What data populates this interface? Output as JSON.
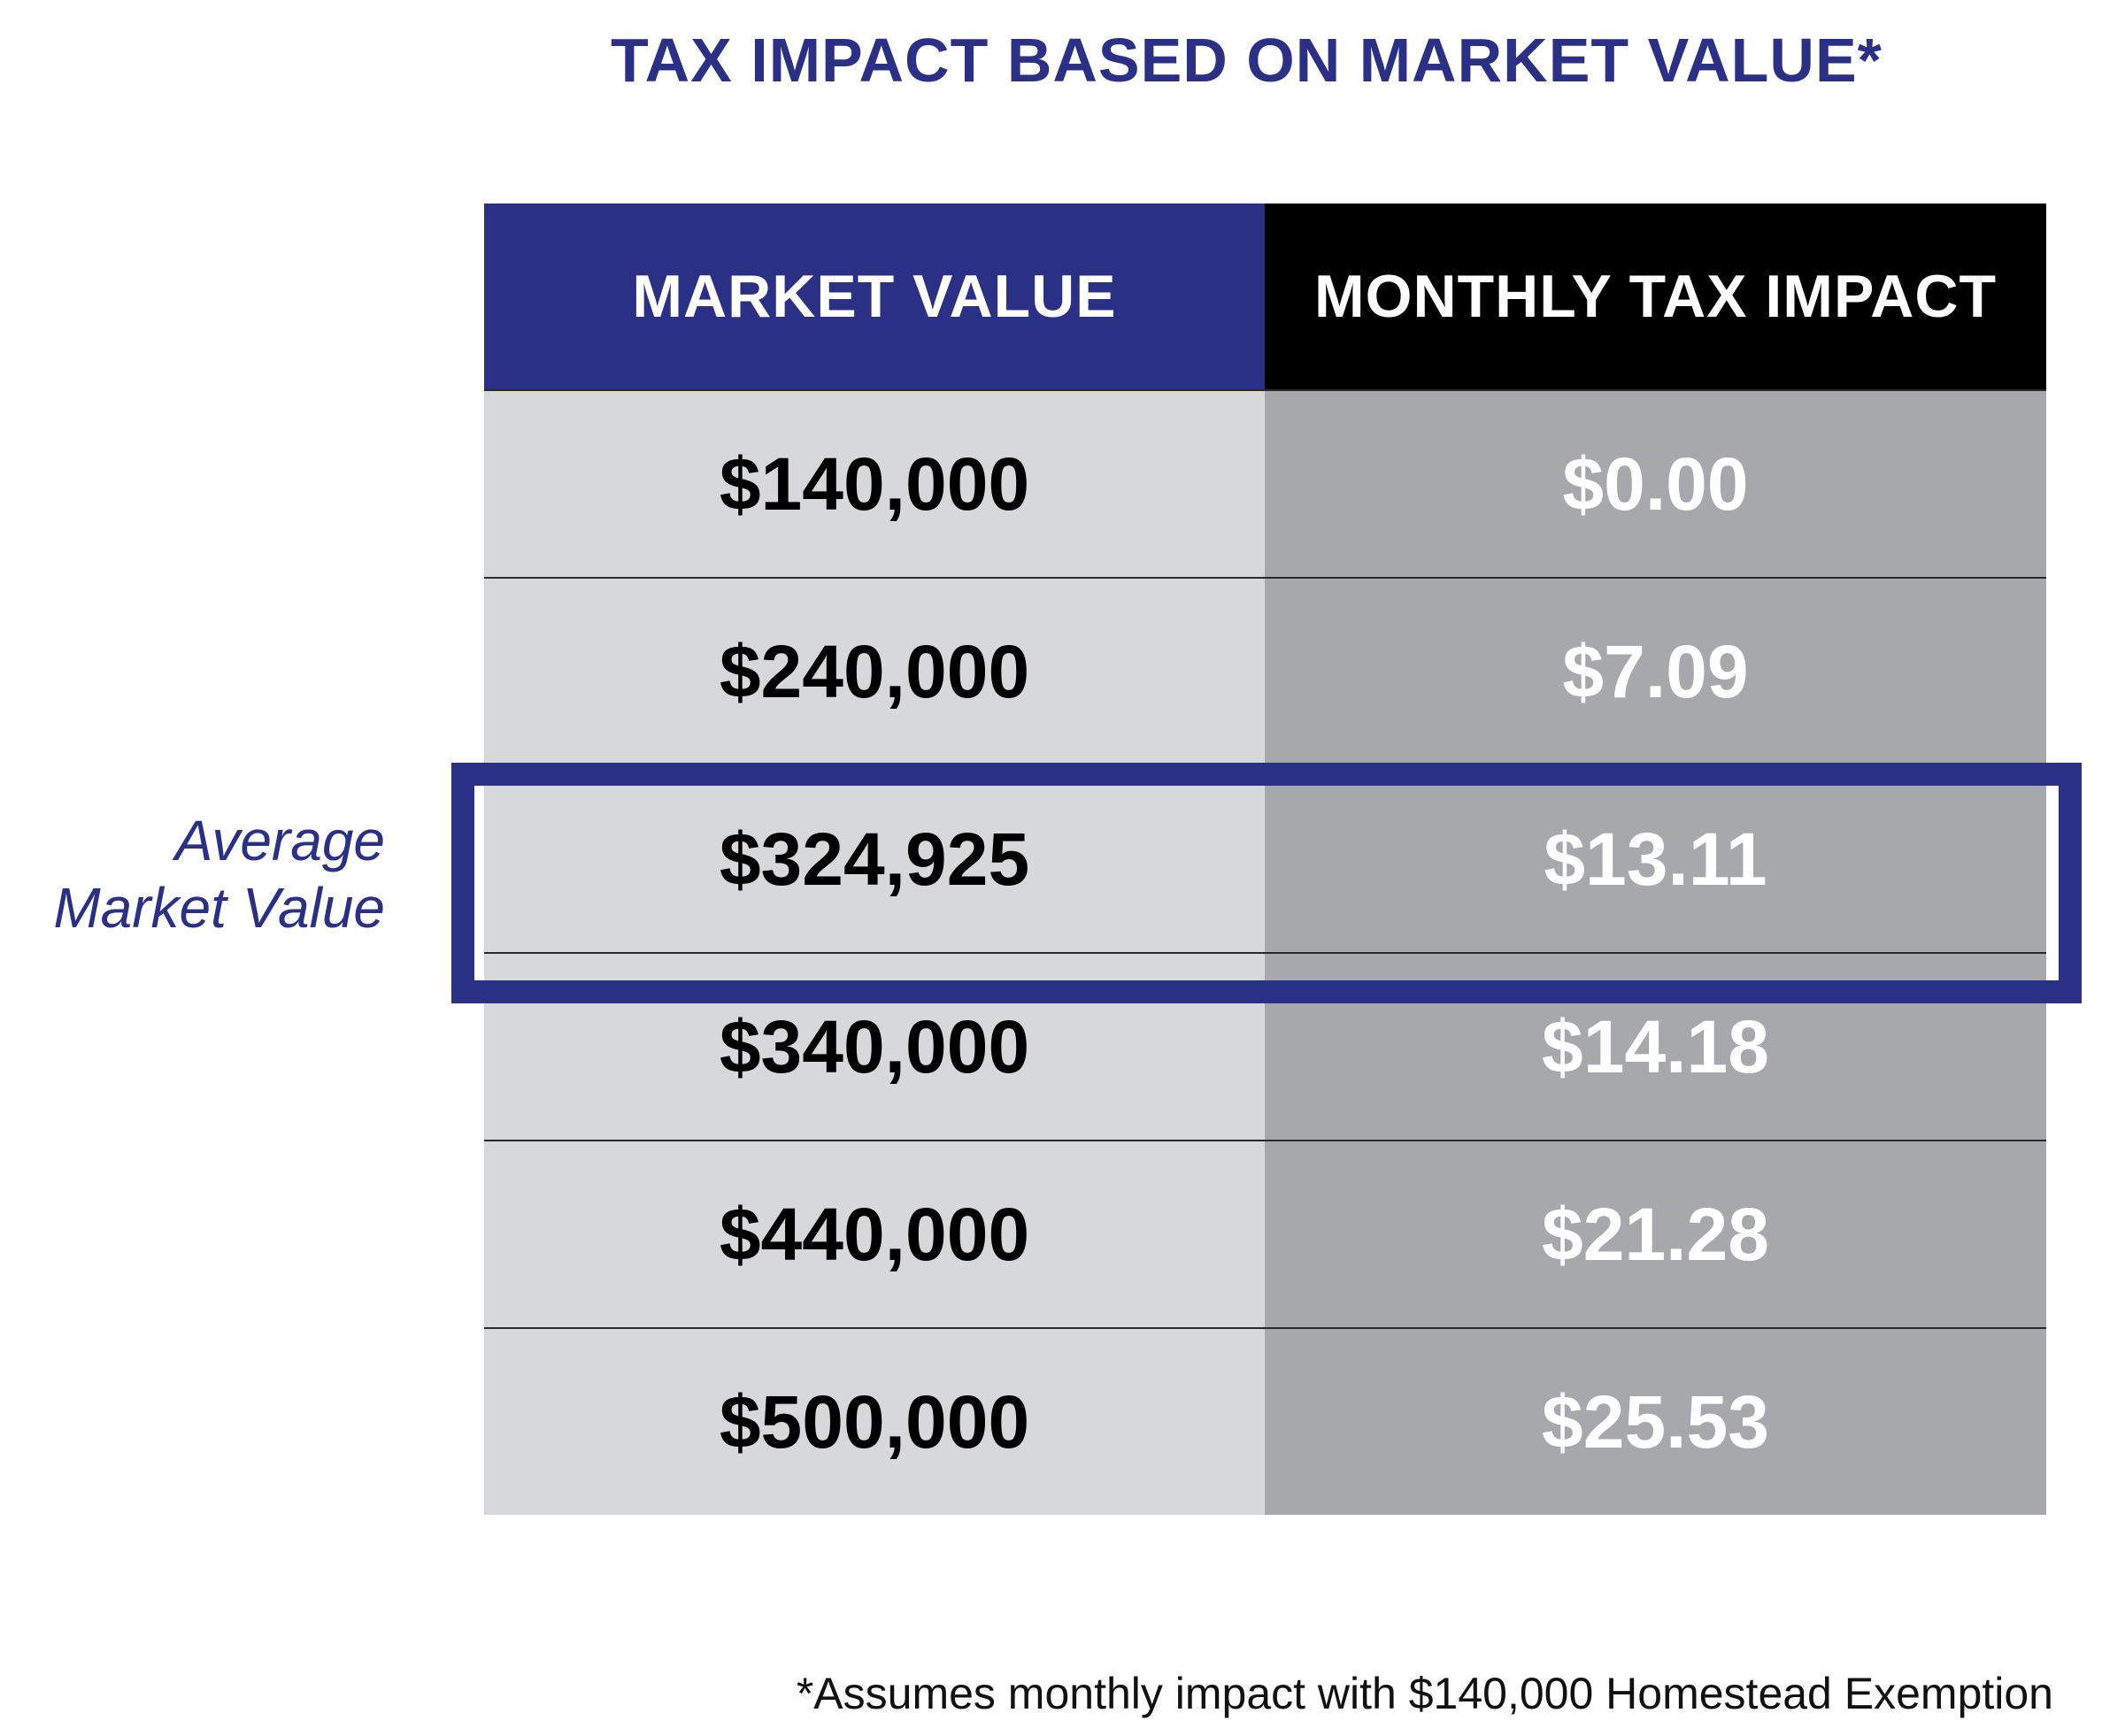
{
  "title": "TAX IMPACT BASED ON MARKET VALUE*",
  "annotation": {
    "line1": "Average",
    "line2": "Market Value"
  },
  "footnote": "*Assumes monthly impact with $140,000 Homestead Exemption",
  "colors": {
    "header_left": "#2b3087",
    "header_right": "#000000",
    "col_left": "#d7d8da",
    "col_right": "#a7a8ab",
    "highlight": "#2b3087"
  },
  "chart_data": {
    "type": "table",
    "title": "TAX IMPACT BASED ON MARKET VALUE*",
    "columns": [
      "MARKET VALUE",
      "MONTHLY TAX IMPACT"
    ],
    "rows": [
      [
        "$140,000",
        "$0.00"
      ],
      [
        "$240,000",
        "$7.09"
      ],
      [
        "$324,925",
        "$13.11"
      ],
      [
        "$340,000",
        "$14.18"
      ],
      [
        "$440,000",
        "$21.28"
      ],
      [
        "$500,000",
        "$25.53"
      ]
    ],
    "highlighted_row": 2,
    "highlight_label": "Average Market Value"
  }
}
